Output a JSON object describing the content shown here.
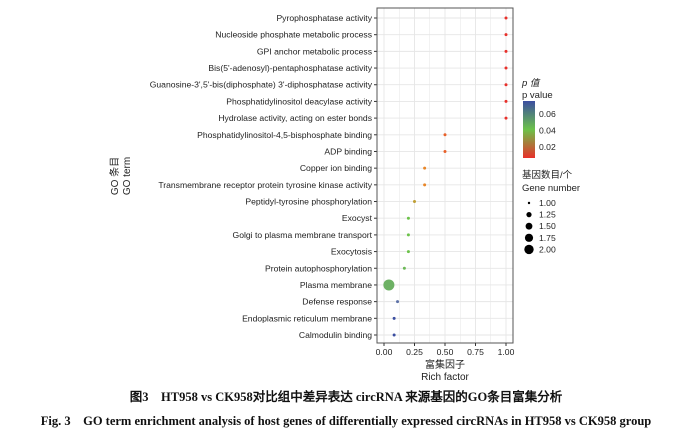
{
  "chart_data": {
    "type": "scatter",
    "xlabel_cn": "富集因子",
    "xlabel_en": "Rich factor",
    "ylabel_cn": "GO 条目",
    "ylabel_en": "GO term",
    "xlim": [
      0,
      1
    ],
    "xticks": [
      "0.00",
      "0.25",
      "0.50",
      "0.75",
      "1.00"
    ],
    "categories": [
      "Pyrophosphatase activity",
      "Nucleoside phosphate metabolic process",
      "GPI anchor metabolic process",
      "Bis(5'-adenosyl)-pentaphosphatase activity",
      "Guanosine-3',5'-bis(diphosphate) 3'-diphosphatase activity",
      "Phosphatidylinositol deacylase activity",
      "Hydrolase activity, acting on ester bonds",
      "Phosphatidylinositol-4,5-bisphosphate binding",
      "ADP binding",
      "Copper ion binding",
      "Transmembrane receptor protein tyrosine kinase activity",
      "Peptidyl-tyrosine phosphorylation",
      "Exocyst",
      "Golgi to plasma membrane transport",
      "Exocytosis",
      "Protein autophosphorylation",
      "Plasma membrane",
      "Defense response",
      "Endoplasmic reticulum membrane",
      "Calmodulin binding"
    ],
    "rich_factor": [
      1,
      1,
      1,
      1,
      1,
      1,
      1,
      0.5,
      0.5,
      0.333,
      0.333,
      0.25,
      0.2,
      0.2,
      0.2,
      0.167,
      0.04,
      0.111,
      0.083,
      0.083
    ],
    "p_value": [
      0.01,
      0.01,
      0.01,
      0.01,
      0.01,
      0.01,
      0.01,
      0.018,
      0.018,
      0.024,
      0.024,
      0.03,
      0.04,
      0.04,
      0.04,
      0.042,
      0.044,
      0.06,
      0.07,
      0.07
    ],
    "gene_number": [
      1,
      1,
      1,
      1,
      1,
      1,
      1,
      1,
      1,
      1,
      1,
      1,
      1,
      1,
      1,
      1,
      2,
      1,
      1,
      1
    ],
    "color_legend": {
      "title_cn": "p 值",
      "title_en": "p value",
      "ticks": [
        "0.06",
        "0.04",
        "0.02"
      ],
      "low_color": "#e8302a",
      "mid_color": "#6cc24a",
      "high_color": "#3b4ea0"
    },
    "size_legend": {
      "title_cn": "基因数目/个",
      "title_en": "Gene number",
      "values": [
        "1.00",
        "1.25",
        "1.50",
        "1.75",
        "2.00"
      ]
    }
  },
  "caption_cn": "图3　HT958 vs CK958对比组中差异表达 circRNA 来源基因的GO条目富集分析",
  "caption_en": "Fig. 3　GO term enrichment analysis of host genes of differentially expressed circRNAs in HT958 vs CK958 group"
}
